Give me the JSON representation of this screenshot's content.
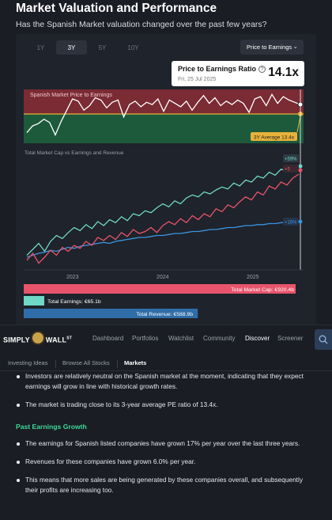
{
  "header": {
    "title": "Market Valuation and Performance",
    "subtitle": "Has the Spanish Market valuation changed over the past few years?"
  },
  "chart_card": {
    "tabs": [
      "1Y",
      "3Y",
      "5Y",
      "10Y"
    ],
    "active_tab": "3Y",
    "metric_select": "Price to Earnings",
    "tooltip": {
      "label": "Price to Earnings Ratio",
      "help": "?",
      "date": "Fri, 25 Jul 2025",
      "value": "14.1x"
    }
  },
  "chart_data": [
    {
      "type": "line",
      "title": "Spanish Market Price to Earnings",
      "annotation": "3Y Average 13.4x",
      "colors": {
        "line": "#ffffff",
        "above_band": "#b3383f",
        "below_band": "#1f7a4a",
        "average": "#e8b23a"
      },
      "series": [
        {
          "name": "Price to Earnings",
          "values": [
            11.6,
            12.2,
            12.4,
            12.8,
            12.5,
            11.4,
            12.6,
            13.6,
            14.6,
            14.4,
            13.6,
            14.0,
            14.7,
            14.5,
            13.8,
            14.3,
            14.5,
            13.0,
            14.1,
            14.4,
            13.9,
            14.3,
            14.1,
            14.6,
            13.5,
            14.5,
            14.2,
            13.9,
            14.4,
            13.6,
            14.3,
            14.9,
            14.2,
            14.7,
            14.0,
            14.4,
            14.1,
            14.5,
            14.2,
            13.4,
            14.6,
            14.8,
            14.0,
            15.0,
            14.2,
            14.8,
            14.5,
            14.3,
            14.1
          ]
        }
      ],
      "average": 13.4
    },
    {
      "type": "line",
      "title": "Total Market Cap vs Earnings and Revenue",
      "x_ticks": [
        "2023",
        "2024",
        "2025"
      ],
      "series": [
        {
          "name": "Total Market Cap",
          "color": "#e8546b",
          "label": "Total Market Cap: €920.4b",
          "end_tag": "+5",
          "values": [
            0.05,
            0.12,
            0.02,
            0.08,
            0.15,
            0.1,
            0.18,
            0.14,
            0.2,
            0.17,
            0.24,
            0.2,
            0.28,
            0.25,
            0.3,
            0.26,
            0.33,
            0.29,
            0.36,
            0.32,
            0.34,
            0.38,
            0.33,
            0.4,
            0.44,
            0.41,
            0.47,
            0.43,
            0.5,
            0.46,
            0.52,
            0.49,
            0.57,
            0.54,
            0.61,
            0.58,
            0.64,
            0.69,
            0.66,
            0.74,
            0.71,
            0.8,
            0.77,
            0.84,
            0.81,
            0.88,
            0.92
          ]
        },
        {
          "name": "Total Earnings",
          "color": "#6fd8c6",
          "label": "Total Earnings: €65.1b",
          "end_tag": "+59%",
          "values": [
            0.1,
            0.16,
            0.22,
            0.14,
            0.24,
            0.3,
            0.27,
            0.33,
            0.38,
            0.35,
            0.41,
            0.37,
            0.44,
            0.4,
            0.46,
            0.43,
            0.49,
            0.45,
            0.52,
            0.5,
            0.55,
            0.53,
            0.58,
            0.62,
            0.59,
            0.65,
            0.62,
            0.68,
            0.71,
            0.69,
            0.74,
            0.72,
            0.76,
            0.79,
            0.77,
            0.83,
            0.8,
            0.86,
            0.84,
            0.9,
            0.88,
            0.94,
            0.91,
            0.97,
            0.95,
            0.99,
            0.98
          ]
        },
        {
          "name": "Total Revenue",
          "color": "#3b94de",
          "label": "Total Revenue: €588.9b",
          "end_tag": "+16%",
          "values": [
            0.08,
            0.1,
            0.12,
            0.13,
            0.15,
            0.14,
            0.16,
            0.18,
            0.17,
            0.19,
            0.2,
            0.21,
            0.22,
            0.23,
            0.22,
            0.24,
            0.25,
            0.26,
            0.27,
            0.28,
            0.28,
            0.29,
            0.3,
            0.3,
            0.31,
            0.32,
            0.32,
            0.33,
            0.34,
            0.34,
            0.35,
            0.36,
            0.36,
            0.37,
            0.38,
            0.38,
            0.39,
            0.4,
            0.4,
            0.41,
            0.41,
            0.42,
            0.42,
            0.43,
            0.43,
            0.44,
            0.44
          ]
        }
      ],
      "bars": [
        {
          "label": "Total Market Cap: €920.4b",
          "fraction": 1.0,
          "color": "#e8546b"
        },
        {
          "label": "Total Earnings: €65.1b",
          "fraction": 0.07,
          "color": "#6fd8c6"
        },
        {
          "label": "Total Revenue: €588.9b",
          "fraction": 0.64,
          "color": "#2f6da8"
        }
      ]
    }
  ],
  "navbar": {
    "logo": "SIMPLY WALL ST",
    "items": [
      "Dashboard",
      "Portfolios",
      "Watchlist",
      "Community",
      "Discover",
      "Screener"
    ],
    "active": "Discover"
  },
  "subnav": {
    "items": [
      "Investing Ideas",
      "Browse All Stocks",
      "Markets"
    ],
    "active": "Markets"
  },
  "content": {
    "bullets_top": [
      "Investors are relatively neutral on the Spanish market at the moment, indicating that they expect earnings will grow in line with historical growth rates.",
      "The market is trading close to its 3-year average PE ratio of 13.4x."
    ],
    "section_title": "Past Earnings Growth",
    "bullets_bottom": [
      "The earnings for Spanish listed companies have grown 17% per year over the last three years.",
      "Revenues for these companies have grown 6.0% per year.",
      "This means that more sales are being generated by these companies overall, and subsequently their profits are increasing too."
    ]
  }
}
